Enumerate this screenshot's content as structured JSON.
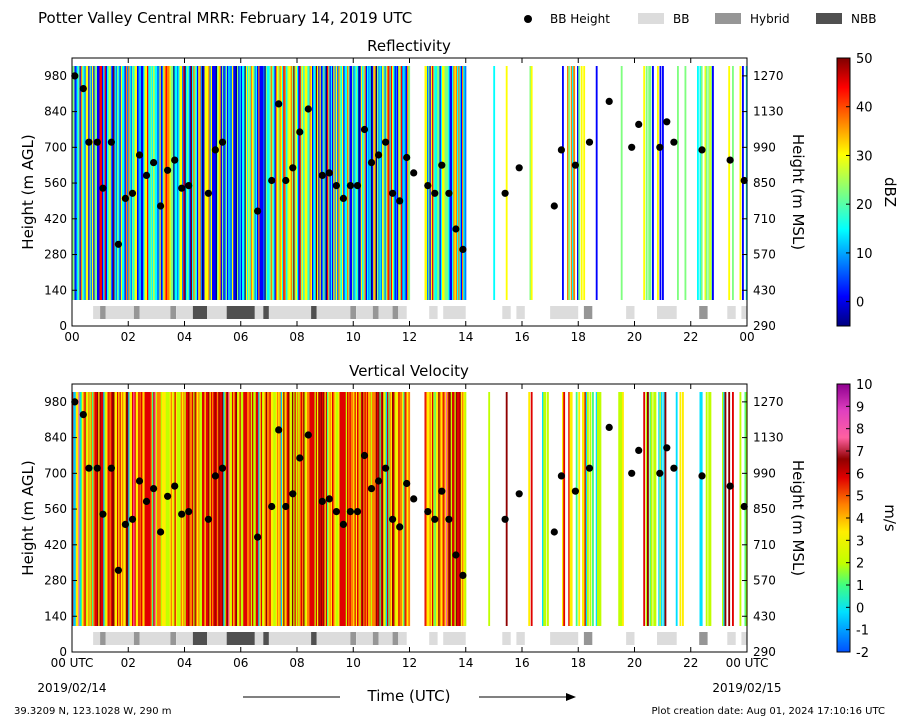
{
  "header": {
    "title": "Potter Valley Central MRR:  February 14, 2019 UTC",
    "legend": [
      {
        "label": "BB Height",
        "kind": "dot",
        "color": "#000000"
      },
      {
        "label": "BB",
        "kind": "box",
        "color": "#dcdcdc"
      },
      {
        "label": "Hybrid",
        "kind": "box",
        "color": "#969696"
      },
      {
        "label": "NBB",
        "kind": "box",
        "color": "#505050"
      }
    ]
  },
  "footer": {
    "x_label": "Time (UTC)",
    "start_date": "2019/02/14",
    "end_date": "2019/02/15",
    "location": "39.3209 N, 123.1028 W, 290 m",
    "creation": "Plot creation date: Aug 01, 2024 17:10:16 UTC"
  },
  "chart_data": [
    {
      "type": "heatmap",
      "title": "Reflectivity",
      "xlabel": "",
      "ylabel": "Height (m AGL)",
      "y2label": "Height (m MSL)",
      "colorbar_label": "dBZ",
      "colorbar_ticks": [
        "50",
        "40",
        "30",
        "20",
        "10",
        "0"
      ],
      "colorbar_range": [
        -5,
        50
      ],
      "xlim": [
        0,
        24
      ],
      "ylim": [
        0,
        1050
      ],
      "x_ticks": [
        "00",
        "02",
        "04",
        "06",
        "08",
        "10",
        "12",
        "14",
        "16",
        "18",
        "20",
        "22",
        "00"
      ],
      "y_ticks": [
        "0",
        "140",
        "280",
        "420",
        "560",
        "700",
        "840",
        "980"
      ],
      "y2_ticks": [
        "290",
        "430",
        "570",
        "710",
        "850",
        "990",
        "1130",
        "1270"
      ]
    },
    {
      "type": "heatmap",
      "title": "Vertical Velocity",
      "xlabel": "",
      "ylabel": "Height (m AGL)",
      "y2label": "Height (m MSL)",
      "colorbar_label": "m/s",
      "colorbar_ticks": [
        "10",
        "9",
        "8",
        "7",
        "6",
        "5",
        "4",
        "3",
        "2",
        "1",
        "0",
        "-1",
        "-2"
      ],
      "colorbar_range": [
        -2,
        10
      ],
      "xlim": [
        0,
        24
      ],
      "ylim": [
        0,
        1050
      ],
      "x_ticks": [
        "00 UTC",
        "02",
        "04",
        "06",
        "08",
        "10",
        "12",
        "14",
        "16",
        "18",
        "20",
        "22",
        "00 UTC"
      ],
      "y_ticks": [
        "0",
        "140",
        "280",
        "420",
        "560",
        "700",
        "840",
        "980"
      ],
      "y2_ticks": [
        "290",
        "430",
        "570",
        "710",
        "850",
        "990",
        "1130",
        "1270"
      ]
    }
  ],
  "bb_height": [
    [
      0.1,
      980
    ],
    [
      0.4,
      930
    ],
    [
      0.6,
      720
    ],
    [
      0.9,
      720
    ],
    [
      1.1,
      540
    ],
    [
      1.4,
      720
    ],
    [
      1.65,
      320
    ],
    [
      1.9,
      500
    ],
    [
      2.15,
      520
    ],
    [
      2.4,
      670
    ],
    [
      2.65,
      590
    ],
    [
      2.9,
      640
    ],
    [
      3.15,
      470
    ],
    [
      3.4,
      610
    ],
    [
      3.65,
      650
    ],
    [
      3.9,
      540
    ],
    [
      4.15,
      550
    ],
    [
      4.85,
      520
    ],
    [
      5.1,
      690
    ],
    [
      5.35,
      720
    ],
    [
      6.6,
      450
    ],
    [
      7.1,
      570
    ],
    [
      7.35,
      870
    ],
    [
      7.6,
      570
    ],
    [
      7.85,
      620
    ],
    [
      8.1,
      760
    ],
    [
      8.4,
      850
    ],
    [
      8.9,
      590
    ],
    [
      9.15,
      600
    ],
    [
      9.4,
      550
    ],
    [
      9.65,
      500
    ],
    [
      9.9,
      550
    ],
    [
      10.15,
      550
    ],
    [
      10.4,
      770
    ],
    [
      10.65,
      640
    ],
    [
      10.9,
      670
    ],
    [
      11.15,
      720
    ],
    [
      11.4,
      520
    ],
    [
      11.65,
      490
    ],
    [
      11.9,
      660
    ],
    [
      12.15,
      600
    ],
    [
      12.65,
      550
    ],
    [
      12.9,
      520
    ],
    [
      13.15,
      630
    ],
    [
      13.4,
      520
    ],
    [
      13.65,
      380
    ],
    [
      13.9,
      300
    ],
    [
      15.4,
      520
    ],
    [
      15.9,
      620
    ],
    [
      17.15,
      470
    ],
    [
      17.4,
      690
    ],
    [
      17.9,
      630
    ],
    [
      18.4,
      720
    ],
    [
      19.1,
      880
    ],
    [
      19.9,
      700
    ],
    [
      20.15,
      790
    ],
    [
      20.9,
      700
    ],
    [
      21.15,
      800
    ],
    [
      21.4,
      720
    ],
    [
      22.4,
      690
    ],
    [
      23.4,
      650
    ],
    [
      23.9,
      570
    ]
  ],
  "bb_type": [
    [
      0.75,
      1.0,
      "BB"
    ],
    [
      1.0,
      1.2,
      "Hybrid"
    ],
    [
      1.2,
      2.2,
      "BB"
    ],
    [
      2.2,
      2.4,
      "Hybrid"
    ],
    [
      2.4,
      3.5,
      "BB"
    ],
    [
      3.5,
      3.7,
      "Hybrid"
    ],
    [
      3.7,
      4.3,
      "BB"
    ],
    [
      4.3,
      4.8,
      "NBB"
    ],
    [
      4.8,
      5.5,
      "BB"
    ],
    [
      5.5,
      6.5,
      "NBB"
    ],
    [
      6.5,
      6.8,
      "BB"
    ],
    [
      6.8,
      7.0,
      "NBB"
    ],
    [
      7.0,
      8.5,
      "BB"
    ],
    [
      8.5,
      8.7,
      "NBB"
    ],
    [
      8.7,
      9.9,
      "BB"
    ],
    [
      9.9,
      10.1,
      "Hybrid"
    ],
    [
      10.1,
      10.7,
      "BB"
    ],
    [
      10.7,
      10.9,
      "Hybrid"
    ],
    [
      10.9,
      11.4,
      "BB"
    ],
    [
      11.4,
      11.6,
      "Hybrid"
    ],
    [
      11.6,
      11.9,
      "BB"
    ],
    [
      12.7,
      13.0,
      "BB"
    ],
    [
      13.2,
      14.0,
      "BB"
    ],
    [
      15.3,
      15.6,
      "BB"
    ],
    [
      15.8,
      16.1,
      "BB"
    ],
    [
      17.0,
      18.0,
      "BB"
    ],
    [
      18.2,
      18.5,
      "Hybrid"
    ],
    [
      19.7,
      20.0,
      "BB"
    ],
    [
      20.8,
      21.5,
      "BB"
    ],
    [
      22.3,
      22.6,
      "Hybrid"
    ],
    [
      23.3,
      23.6,
      "BB"
    ],
    [
      23.8,
      24.0,
      "BB"
    ]
  ],
  "data_gaps": [
    [
      12.0,
      12.5
    ],
    [
      14.0,
      14.8
    ],
    [
      15.0,
      15.4
    ],
    [
      15.7,
      16.2
    ],
    [
      16.4,
      16.7
    ],
    [
      16.9,
      17.4
    ],
    [
      18.9,
      19.3
    ],
    [
      19.6,
      20.3
    ],
    [
      21.1,
      21.4
    ],
    [
      21.8,
      22.2
    ],
    [
      22.8,
      23.1
    ],
    [
      23.5,
      23.7
    ]
  ]
}
